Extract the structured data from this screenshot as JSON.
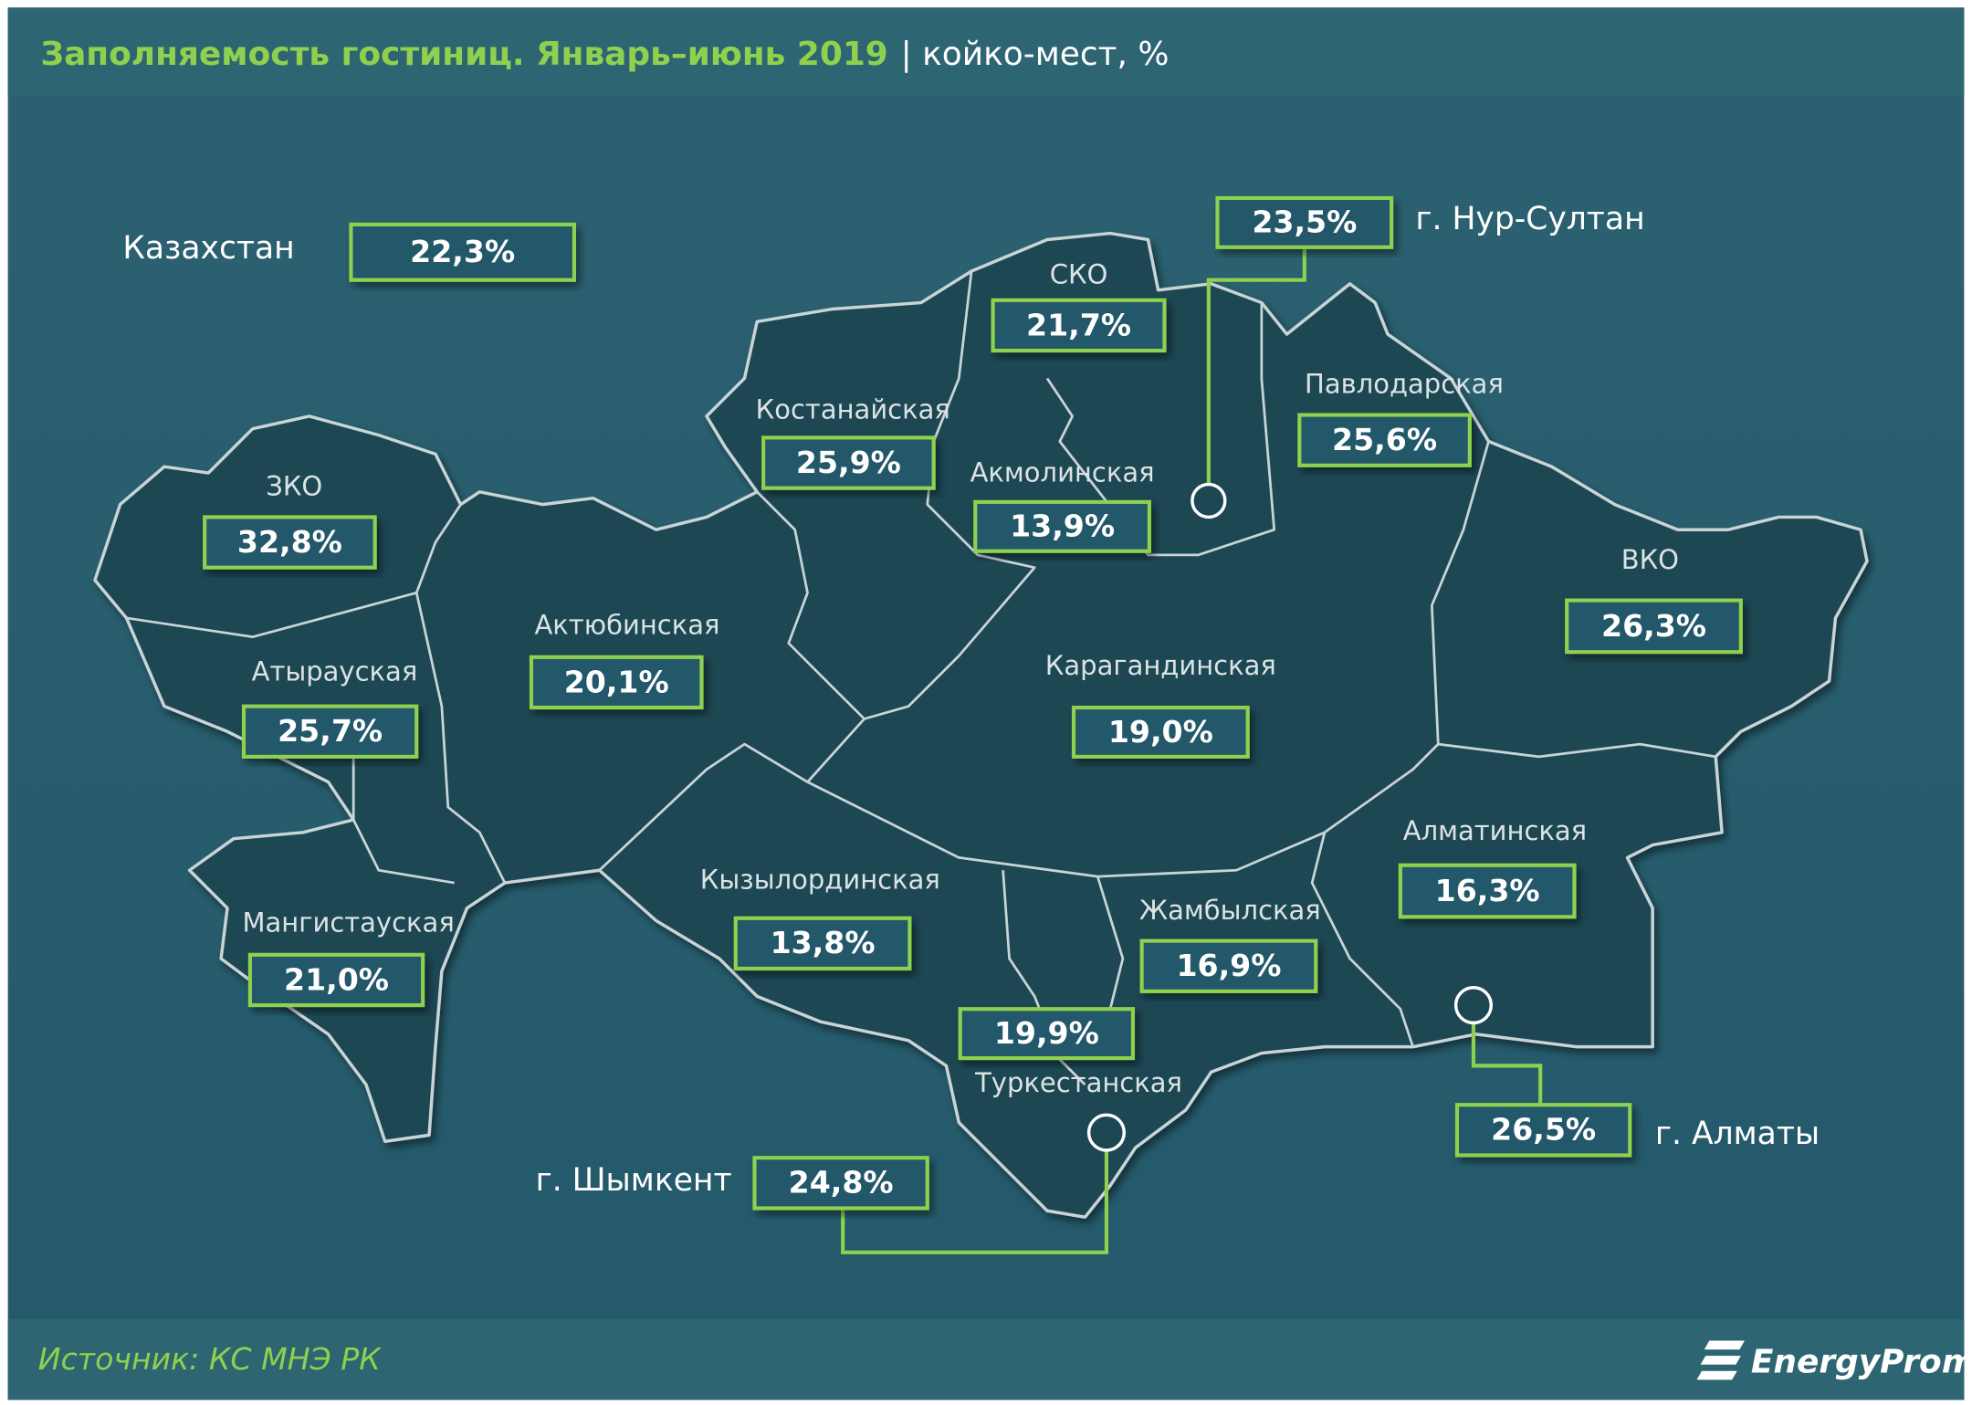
{
  "header": {
    "title": "Заполняемость гостиниц. Январь–июнь 2019",
    "unit": "| койко-мест,  %"
  },
  "regions": [
    {
      "name": "Казахстан",
      "value": "22,3%"
    },
    {
      "name": "г. Нур-Султан",
      "value": "23,5%"
    },
    {
      "name": "СКО",
      "value": "21,7%"
    },
    {
      "name": "Костанайская",
      "value": "25,9%"
    },
    {
      "name": "Акмолинская",
      "value": "13,9%"
    },
    {
      "name": "Павлодарская",
      "value": "25,6%"
    },
    {
      "name": "ЗКО",
      "value": "32,8%"
    },
    {
      "name": "Актюбинская",
      "value": "20,1%"
    },
    {
      "name": "ВКО",
      "value": "26,3%"
    },
    {
      "name": "Атырауская",
      "value": "25,7%"
    },
    {
      "name": "Карагандинская",
      "value": "19,0%"
    },
    {
      "name": "Алматинская",
      "value": "16,3%"
    },
    {
      "name": "Кызылординская",
      "value": "13,8%"
    },
    {
      "name": "Мангистауская",
      "value": "21,0%"
    },
    {
      "name": "Жамбылская",
      "value": "16,9%"
    },
    {
      "name": "Туркестанская",
      "value": "19,9%"
    },
    {
      "name": "г. Шымкент",
      "value": "24,8%"
    },
    {
      "name": "г. Алматы",
      "value": "26,5%"
    }
  ],
  "footer": {
    "source": "Источник: КС МНЭ РК",
    "brand": "EnergyProm"
  }
}
